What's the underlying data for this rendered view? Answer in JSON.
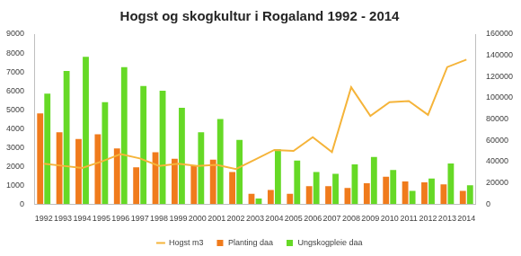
{
  "chart_data": {
    "type": "bar",
    "title": "Hogst og skogkultur i Rogaland 1992 - 2014",
    "categories": [
      "1992",
      "1993",
      "1994",
      "1995",
      "1996",
      "1997",
      "1998",
      "1999",
      "2000",
      "2001",
      "2002",
      "2003",
      "2004",
      "2005",
      "2006",
      "2007",
      "2008",
      "2009",
      "2010",
      "2011",
      "2012",
      "2013",
      "2014"
    ],
    "series": [
      {
        "name": "Planting daa",
        "color": "#f07b1c",
        "type": "bar",
        "values": [
          4800,
          3800,
          3450,
          3700,
          2950,
          1950,
          2750,
          2400,
          2050,
          2350,
          1700,
          550,
          750,
          550,
          950,
          950,
          850,
          1100,
          1450,
          1200,
          1150,
          1050,
          700
        ]
      },
      {
        "name": "Ungskogpleie daa",
        "color": "#66d926",
        "type": "bar",
        "values": [
          5850,
          7050,
          7800,
          5400,
          7250,
          6250,
          6000,
          5100,
          3800,
          4500,
          3400,
          300,
          2900,
          2300,
          1700,
          1600,
          2100,
          2500,
          1800,
          700,
          1350,
          2150,
          1000
        ]
      },
      {
        "name": "Hogst m3",
        "color": "#f5b43a",
        "type": "line",
        "axis": "y2",
        "values": [
          38000,
          36000,
          34000,
          40000,
          47000,
          43000,
          36000,
          38000,
          36000,
          37000,
          33000,
          42000,
          51000,
          50000,
          63000,
          49000,
          110000,
          83000,
          96000,
          97000,
          84000,
          129000,
          136000
        ]
      }
    ],
    "ylim": [
      0,
      9000
    ],
    "yticks": [
      0,
      1000,
      2000,
      3000,
      4000,
      5000,
      6000,
      7000,
      8000,
      9000
    ],
    "y2lim": [
      0,
      160000
    ],
    "y2ticks": [
      0,
      20000,
      40000,
      60000,
      80000,
      100000,
      120000,
      140000,
      160000
    ],
    "grid": false,
    "legend": "bottom"
  }
}
